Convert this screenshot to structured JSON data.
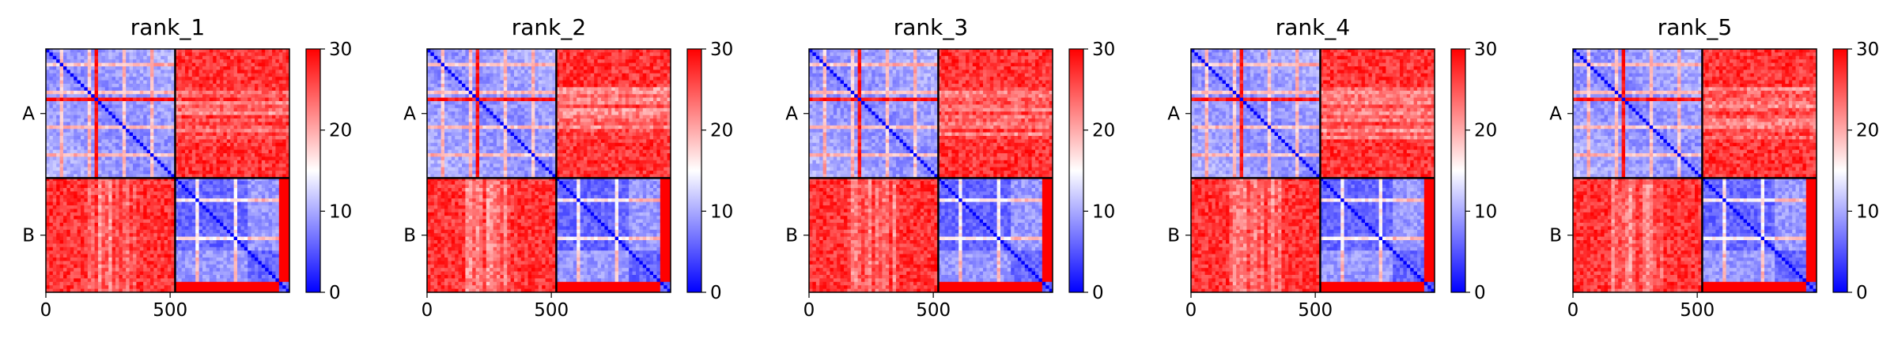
{
  "chart_data": [
    {
      "type": "heatmap",
      "title": "rank_1",
      "x_ticks": [
        0,
        500
      ],
      "y_ticks": [
        "A",
        "B"
      ],
      "boundary": 520,
      "extent": [
        0,
        980
      ],
      "colorbar": {
        "min": 0,
        "max": 30,
        "ticks": [
          0,
          10,
          20,
          30
        ],
        "colormap": "bwr"
      },
      "grid": false
    },
    {
      "type": "heatmap",
      "title": "rank_2",
      "x_ticks": [
        0,
        500
      ],
      "y_ticks": [
        "A",
        "B"
      ],
      "boundary": 520,
      "extent": [
        0,
        980
      ],
      "colorbar": {
        "min": 0,
        "max": 30,
        "ticks": [
          0,
          10,
          20,
          30
        ],
        "colormap": "bwr"
      },
      "grid": false
    },
    {
      "type": "heatmap",
      "title": "rank_3",
      "x_ticks": [
        0,
        500
      ],
      "y_ticks": [
        "A",
        "B"
      ],
      "boundary": 520,
      "extent": [
        0,
        980
      ],
      "colorbar": {
        "min": 0,
        "max": 30,
        "ticks": [
          0,
          10,
          20,
          30
        ],
        "colormap": "bwr"
      },
      "grid": false
    },
    {
      "type": "heatmap",
      "title": "rank_4",
      "x_ticks": [
        0,
        500
      ],
      "y_ticks": [
        "A",
        "B"
      ],
      "boundary": 520,
      "extent": [
        0,
        980
      ],
      "colorbar": {
        "min": 0,
        "max": 30,
        "ticks": [
          0,
          10,
          20,
          30
        ],
        "colormap": "bwr"
      },
      "grid": false
    },
    {
      "type": "heatmap",
      "title": "rank_5",
      "x_ticks": [
        0,
        500
      ],
      "y_ticks": [
        "A",
        "B"
      ],
      "boundary": 520,
      "extent": [
        0,
        980
      ],
      "colorbar": {
        "min": 0,
        "max": 30,
        "ticks": [
          0,
          10,
          20,
          30
        ],
        "colormap": "bwr"
      },
      "grid": false
    }
  ],
  "colors": {
    "low": "#0000ff",
    "mid": "#ffffff",
    "high": "#ff0000",
    "axis": "#000000"
  }
}
